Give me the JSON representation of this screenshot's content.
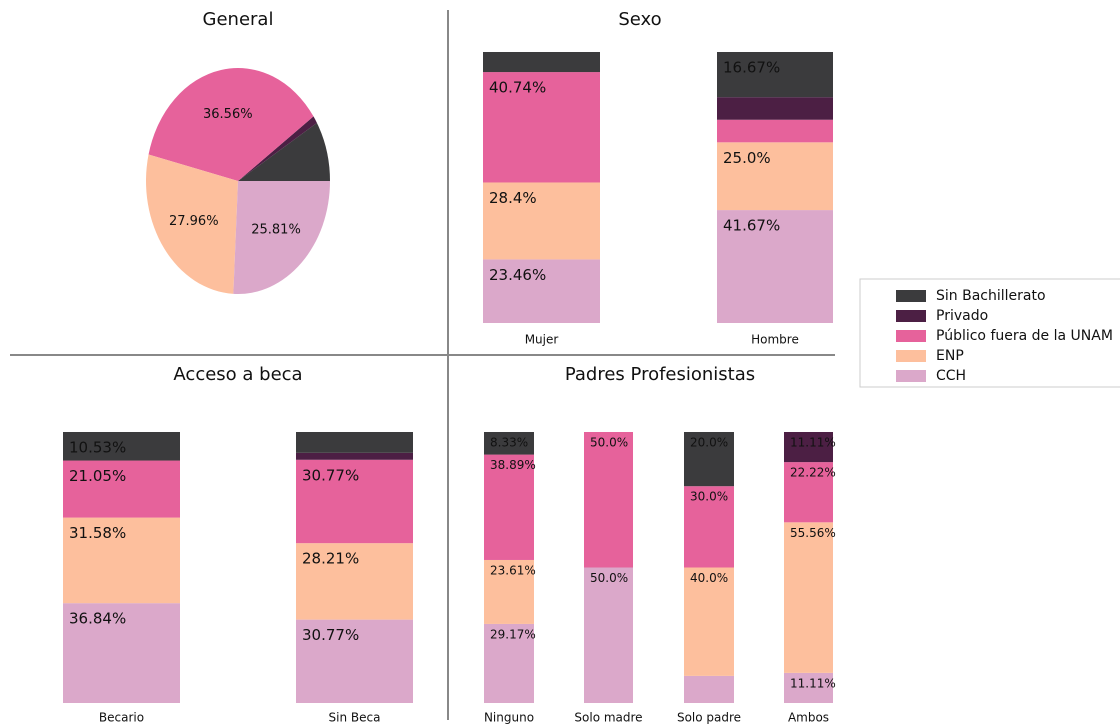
{
  "chart_data": [
    {
      "type": "pie",
      "title": "General",
      "categories": [
        "Sin Bachillerato",
        "Privado",
        "Público fuera de la UNAM",
        "ENP",
        "CCH"
      ],
      "values": [
        8.6,
        1.08,
        36.56,
        27.96,
        25.81
      ],
      "value_labels": [
        null,
        null,
        "36.56%",
        "27.96%",
        "25.81%"
      ],
      "colors": [
        "#3b3b3d",
        "#4c1f44",
        "#e6629b",
        "#fdbf9d",
        "#dba8ca"
      ]
    },
    {
      "type": "stacked_bar",
      "title": "Sexo",
      "categories": [
        "Mujer",
        "Hombre"
      ],
      "series": [
        {
          "name": "CCH",
          "color": "#dba8ca",
          "values": [
            23.46,
            41.67
          ],
          "value_labels": [
            "23.46%",
            "41.67%"
          ]
        },
        {
          "name": "ENP",
          "color": "#fdbf9d",
          "values": [
            28.4,
            25.0
          ],
          "value_labels": [
            "28.4%",
            "25.0%"
          ]
        },
        {
          "name": "Público fuera de la UNAM",
          "color": "#e6629b",
          "values": [
            40.74,
            8.33
          ],
          "value_labels": [
            "40.74%",
            null
          ]
        },
        {
          "name": "Privado",
          "color": "#4c1f44",
          "values": [
            0,
            8.33
          ],
          "value_labels": [
            null,
            null
          ]
        },
        {
          "name": "Sin Bachillerato",
          "color": "#3b3b3d",
          "values": [
            7.41,
            16.67
          ],
          "value_labels": [
            null,
            "16.67%"
          ]
        }
      ]
    },
    {
      "type": "stacked_bar",
      "title": "Acceso a beca",
      "categories": [
        "Becario",
        "Sin Beca"
      ],
      "series": [
        {
          "name": "CCH",
          "color": "#dba8ca",
          "values": [
            36.84,
            30.77
          ],
          "value_labels": [
            "36.84%",
            "30.77%"
          ]
        },
        {
          "name": "ENP",
          "color": "#fdbf9d",
          "values": [
            31.58,
            28.21
          ],
          "value_labels": [
            "31.58%",
            "28.21%"
          ]
        },
        {
          "name": "Público fuera de la UNAM",
          "color": "#e6629b",
          "values": [
            21.05,
            30.77
          ],
          "value_labels": [
            "21.05%",
            "30.77%"
          ]
        },
        {
          "name": "Privado",
          "color": "#4c1f44",
          "values": [
            0,
            2.56
          ],
          "value_labels": [
            null,
            null
          ]
        },
        {
          "name": "Sin Bachillerato",
          "color": "#3b3b3d",
          "values": [
            10.53,
            7.69
          ],
          "value_labels": [
            "10.53%",
            null
          ]
        }
      ]
    },
    {
      "type": "stacked_bar",
      "title": "Padres Profesionistas",
      "categories": [
        "Ninguno",
        "Solo madre",
        "Solo padre",
        "Ambos"
      ],
      "series": [
        {
          "name": "CCH",
          "color": "#dba8ca",
          "values": [
            29.17,
            50.0,
            10.0,
            11.11
          ],
          "value_labels": [
            "29.17%",
            "50.0%",
            null,
            "11.11%"
          ]
        },
        {
          "name": "ENP",
          "color": "#fdbf9d",
          "values": [
            23.61,
            0,
            40.0,
            55.56
          ],
          "value_labels": [
            "23.61%",
            null,
            "40.0%",
            "55.56%"
          ]
        },
        {
          "name": "Público fuera de la UNAM",
          "color": "#e6629b",
          "values": [
            38.89,
            50.0,
            30.0,
            22.22
          ],
          "value_labels": [
            "38.89%",
            "50.0%",
            "30.0%",
            "22.22%"
          ]
        },
        {
          "name": "Privado",
          "color": "#4c1f44",
          "values": [
            0,
            0,
            0,
            11.11
          ],
          "value_labels": [
            null,
            null,
            null,
            "11.11%"
          ]
        },
        {
          "name": "Sin Bachillerato",
          "color": "#3b3b3d",
          "values": [
            8.33,
            0,
            20.0,
            0
          ],
          "value_labels": [
            "8.33%",
            null,
            "20.0%",
            null
          ]
        }
      ]
    }
  ]
}
